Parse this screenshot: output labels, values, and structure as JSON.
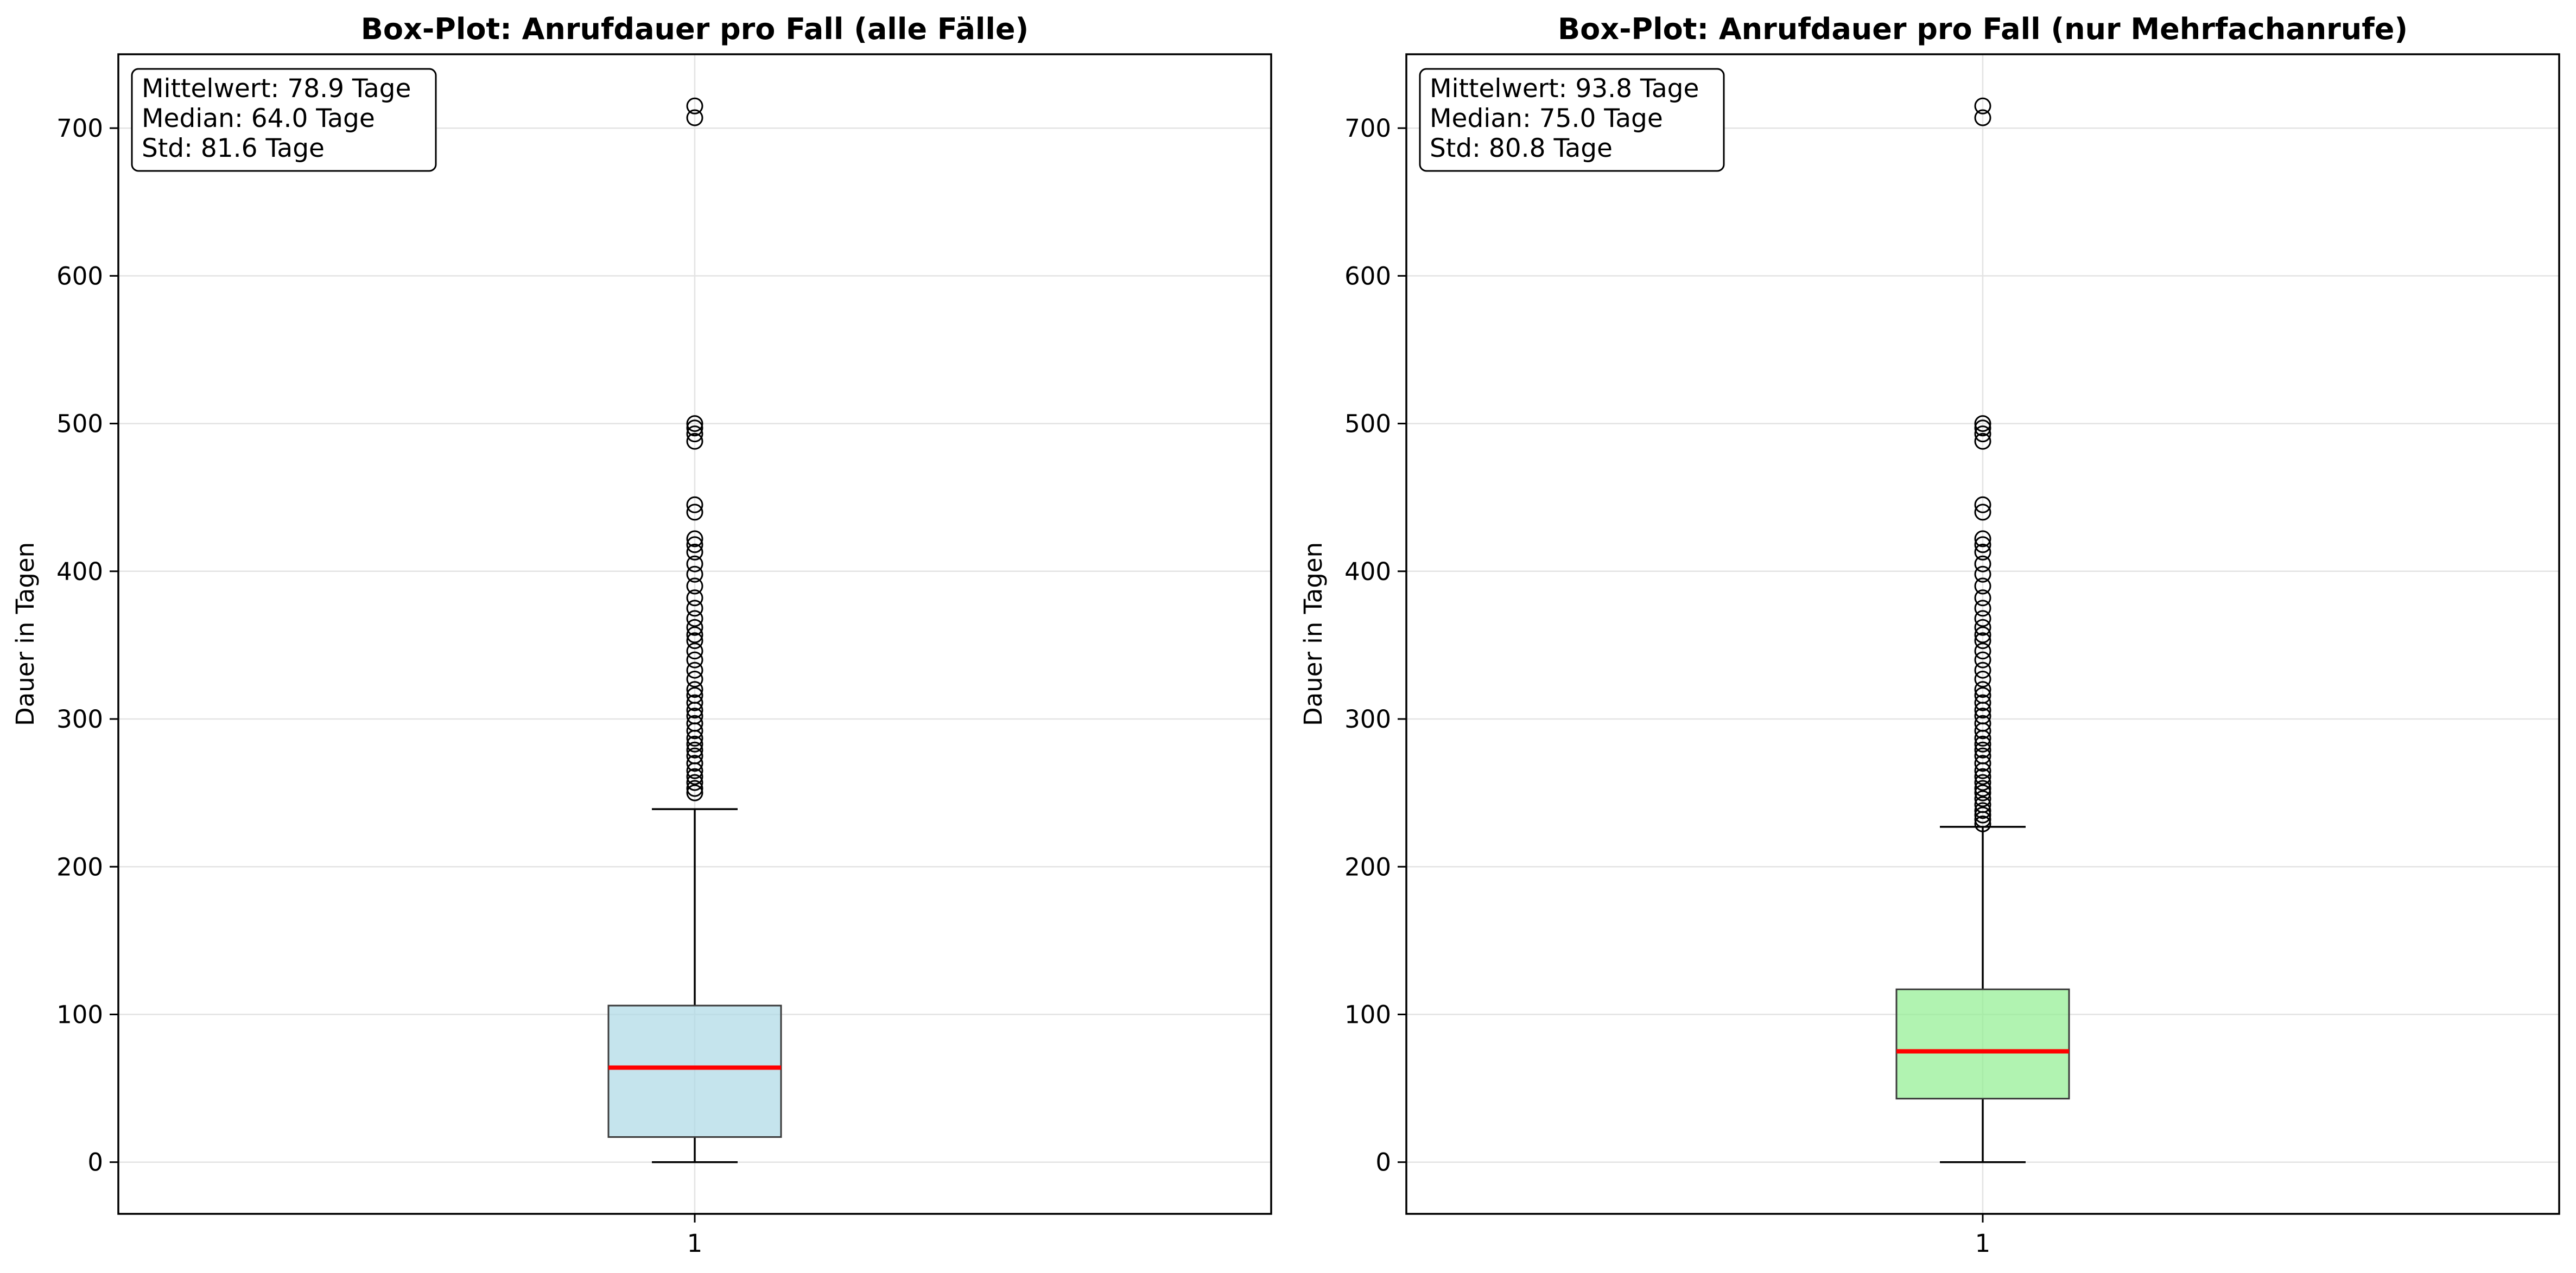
{
  "chart_data": [
    {
      "type": "box",
      "title": "Box-Plot: Anrufdauer pro Fall (alle Fälle)",
      "xlabel": "",
      "ylabel": "Dauer in Tagen",
      "categories": [
        "1"
      ],
      "ylim": [
        -35,
        750
      ],
      "yticks": [
        "0",
        "100",
        "200",
        "300",
        "400",
        "500",
        "600",
        "700"
      ],
      "grid": true,
      "box": {
        "whisker_low": 0,
        "q1": 17,
        "median": 64,
        "q3": 106,
        "whisker_high": 239
      },
      "outliers": [
        250,
        253,
        257,
        261,
        265,
        270,
        275,
        279,
        283,
        287,
        292,
        297,
        302,
        306,
        311,
        316,
        320,
        327,
        333,
        340,
        346,
        353,
        357,
        362,
        368,
        375,
        382,
        390,
        398,
        405,
        413,
        418,
        422,
        440,
        445,
        488,
        493,
        497,
        500,
        707,
        715
      ],
      "stats_lines": [
        "Mittelwert: 78.9 Tage",
        "Median: 64.0 Tage",
        "Std: 81.6 Tage"
      ],
      "box_color": "#add8e6",
      "median_color": "#ff0000"
    },
    {
      "type": "box",
      "title": "Box-Plot: Anrufdauer pro Fall (nur Mehrfachanrufe)",
      "xlabel": "",
      "ylabel": "Dauer in Tagen",
      "categories": [
        "1"
      ],
      "ylim": [
        -35,
        750
      ],
      "yticks": [
        "0",
        "100",
        "200",
        "300",
        "400",
        "500",
        "600",
        "700"
      ],
      "grid": true,
      "box": {
        "whisker_low": 0,
        "q1": 43,
        "median": 75,
        "q3": 117,
        "whisker_high": 227
      },
      "outliers": [
        229,
        232,
        235,
        238,
        242,
        246,
        250,
        253,
        257,
        261,
        265,
        270,
        275,
        279,
        283,
        287,
        292,
        297,
        302,
        306,
        311,
        316,
        320,
        327,
        333,
        340,
        346,
        353,
        357,
        362,
        368,
        375,
        382,
        390,
        398,
        405,
        413,
        418,
        422,
        440,
        445,
        488,
        493,
        497,
        500,
        707,
        715
      ],
      "stats_lines": [
        "Mittelwert: 93.8 Tage",
        "Median: 75.0 Tage",
        "Std: 80.8 Tage"
      ],
      "box_color": "#90ee90",
      "median_color": "#ff0000"
    }
  ]
}
